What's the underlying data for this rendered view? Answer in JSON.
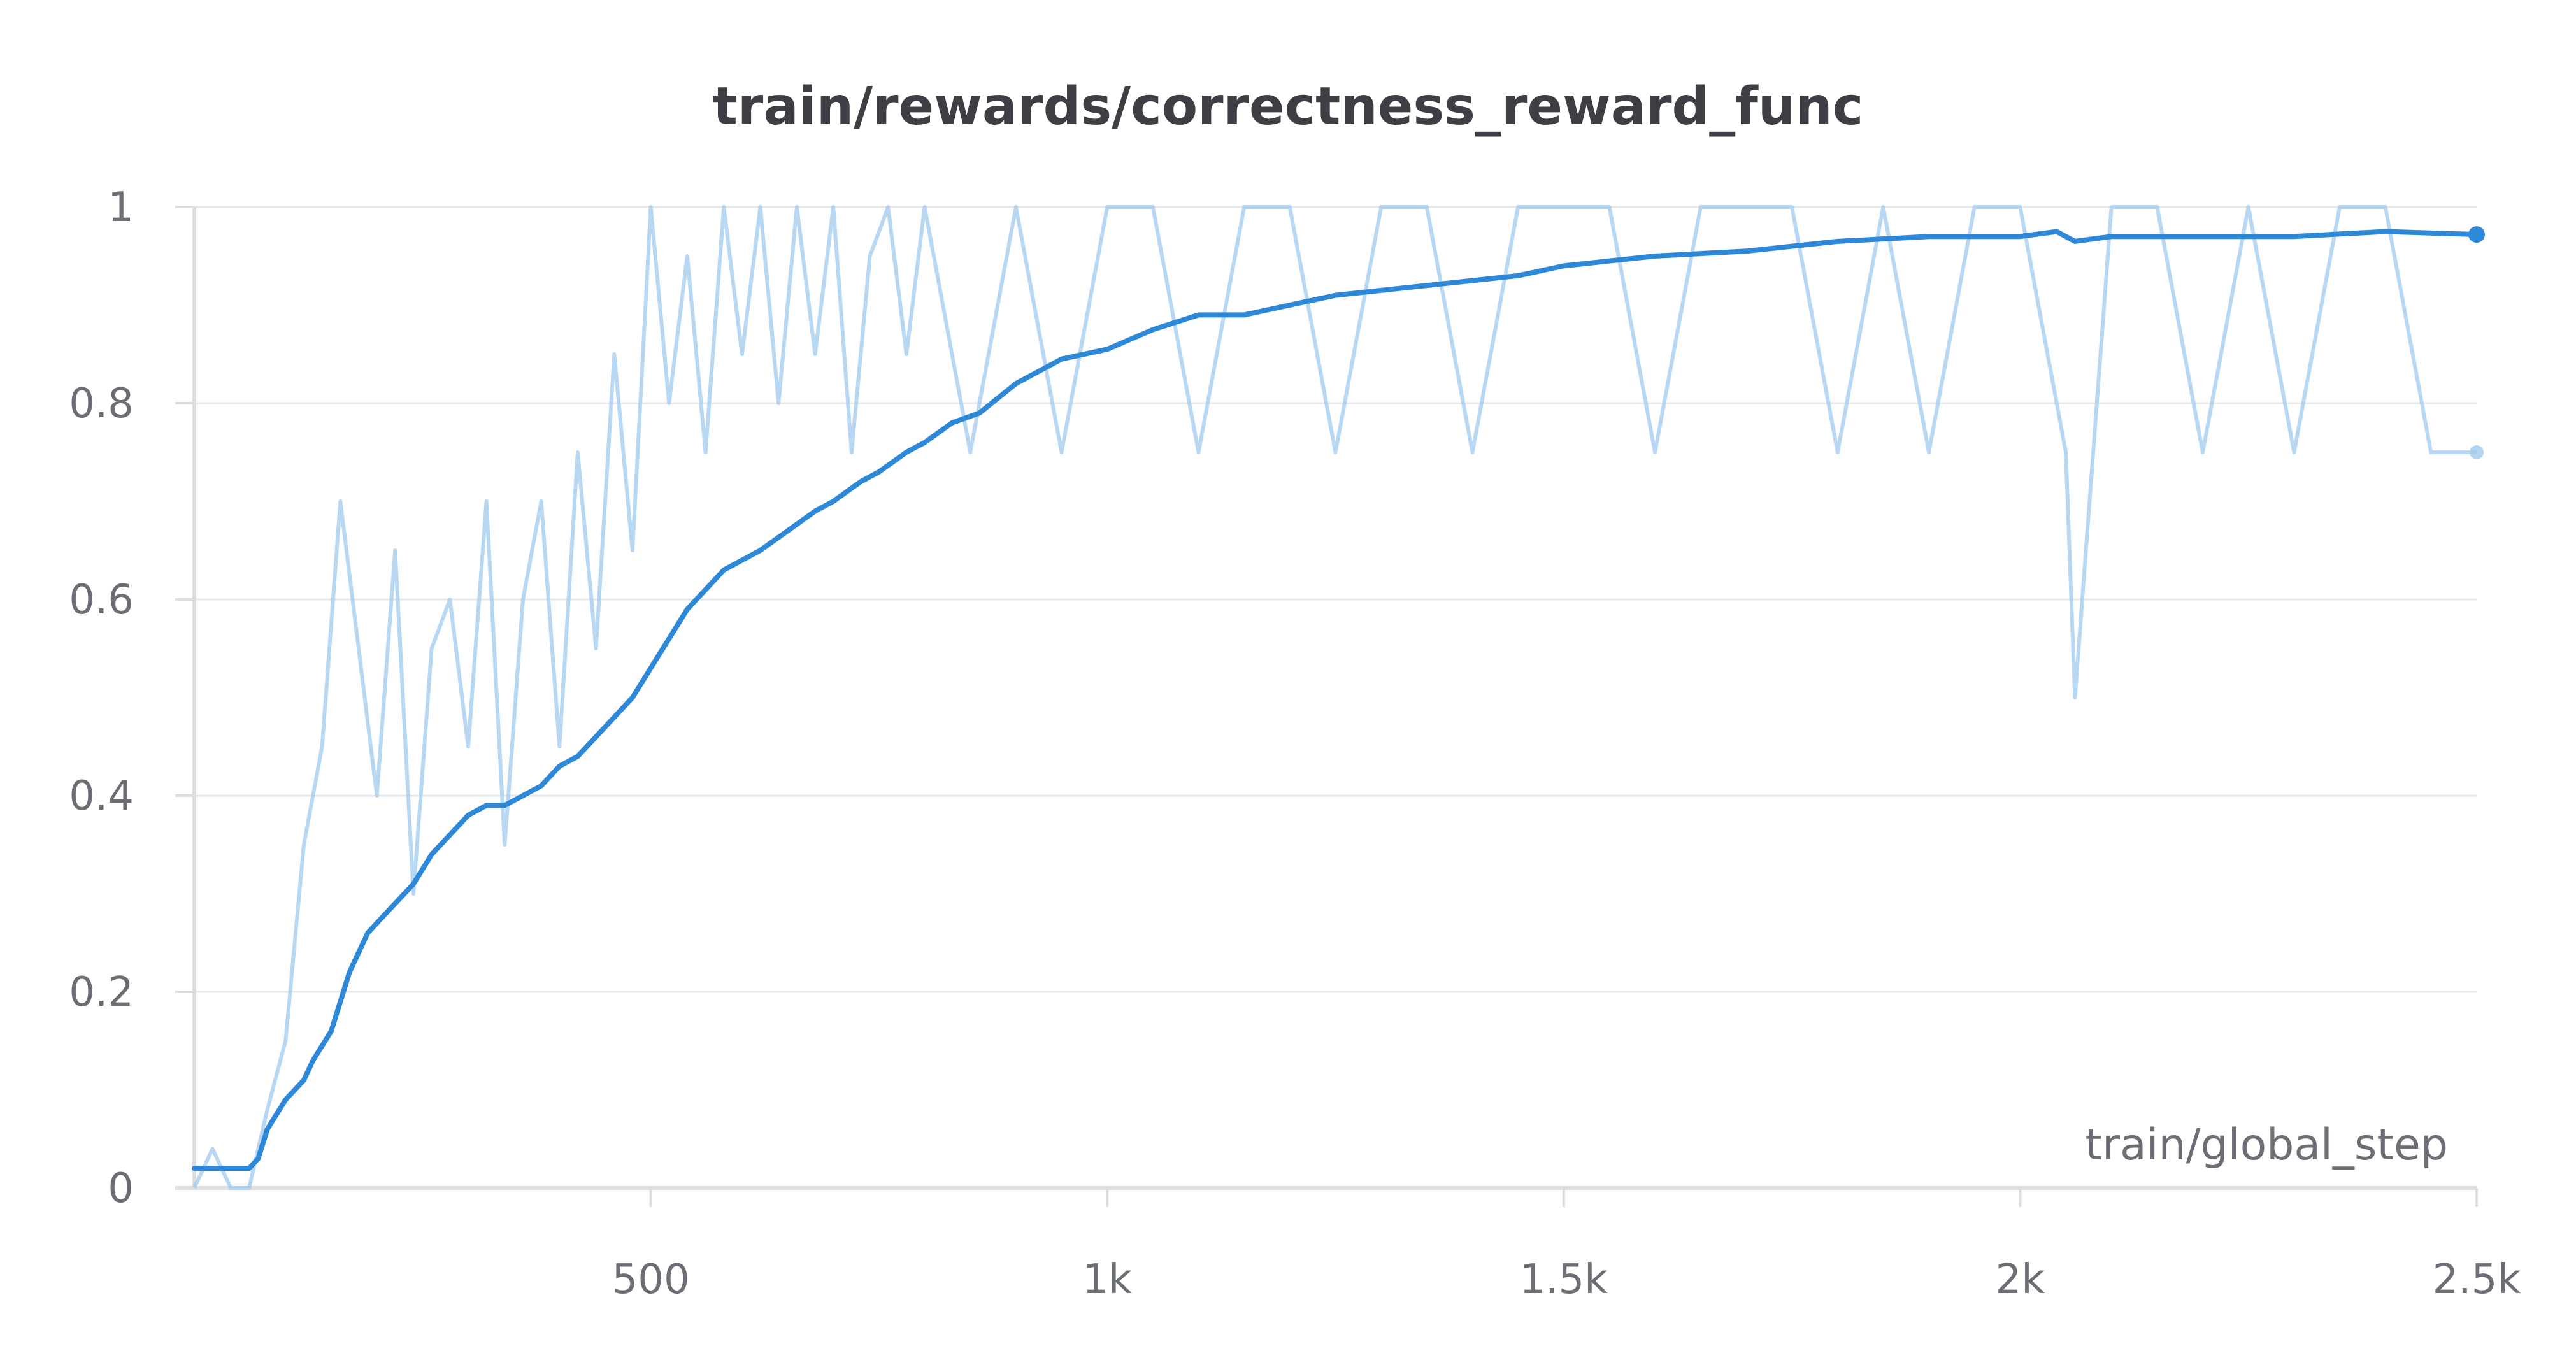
{
  "chart_data": {
    "type": "line",
    "title": "train/rewards/correctness_reward_func",
    "xlabel": "train/global_step",
    "ylabel": "",
    "xlim": [
      0,
      2500
    ],
    "ylim": [
      0,
      1
    ],
    "x_ticks": [
      {
        "value": 500,
        "label": "500"
      },
      {
        "value": 1000,
        "label": "1k"
      },
      {
        "value": 1500,
        "label": "1.5k"
      },
      {
        "value": 2000,
        "label": "2k"
      },
      {
        "value": 2500,
        "label": "2.5k"
      }
    ],
    "y_ticks": [
      {
        "value": 0,
        "label": "0"
      },
      {
        "value": 0.2,
        "label": "0.2"
      },
      {
        "value": 0.4,
        "label": "0.4"
      },
      {
        "value": 0.6,
        "label": "0.6"
      },
      {
        "value": 0.8,
        "label": "0.8"
      },
      {
        "value": 1,
        "label": "1"
      }
    ],
    "grid": true,
    "colors": {
      "smoothed": "#2e88d8",
      "raw": "#9fcaee",
      "grid": "#e6e7ea",
      "axis": "#dcdde0",
      "text": "#6c6e76",
      "title": "#3d3f45"
    },
    "series": [
      {
        "role": "smoothed",
        "x": [
          0,
          10,
          30,
          50,
          60,
          70,
          80,
          100,
          120,
          130,
          150,
          170,
          190,
          200,
          220,
          240,
          260,
          280,
          300,
          320,
          340,
          360,
          380,
          400,
          420,
          440,
          460,
          480,
          500,
          520,
          540,
          560,
          580,
          600,
          620,
          650,
          680,
          700,
          730,
          750,
          780,
          800,
          830,
          860,
          900,
          950,
          1000,
          1050,
          1100,
          1150,
          1200,
          1250,
          1300,
          1350,
          1400,
          1450,
          1500,
          1600,
          1700,
          1800,
          1900,
          2000,
          2040,
          2060,
          2100,
          2150,
          2200,
          2300,
          2400,
          2500
        ],
        "y": [
          0.02,
          0.02,
          0.02,
          0.02,
          0.02,
          0.03,
          0.06,
          0.09,
          0.11,
          0.13,
          0.16,
          0.22,
          0.26,
          0.27,
          0.29,
          0.31,
          0.34,
          0.36,
          0.38,
          0.39,
          0.39,
          0.4,
          0.41,
          0.43,
          0.44,
          0.46,
          0.48,
          0.5,
          0.53,
          0.56,
          0.59,
          0.61,
          0.63,
          0.64,
          0.65,
          0.67,
          0.69,
          0.7,
          0.72,
          0.73,
          0.75,
          0.76,
          0.78,
          0.79,
          0.82,
          0.845,
          0.855,
          0.875,
          0.89,
          0.89,
          0.9,
          0.91,
          0.915,
          0.92,
          0.925,
          0.93,
          0.94,
          0.95,
          0.955,
          0.965,
          0.97,
          0.97,
          0.975,
          0.965,
          0.97,
          0.97,
          0.97,
          0.97,
          0.975,
          0.972
        ]
      },
      {
        "role": "raw",
        "x": [
          0,
          20,
          40,
          60,
          80,
          100,
          120,
          140,
          160,
          180,
          200,
          220,
          240,
          260,
          280,
          300,
          320,
          340,
          360,
          380,
          400,
          420,
          440,
          460,
          480,
          500,
          520,
          540,
          560,
          580,
          600,
          620,
          640,
          660,
          680,
          700,
          720,
          740,
          760,
          780,
          800,
          850,
          900,
          950,
          1000,
          1050,
          1100,
          1150,
          1200,
          1250,
          1300,
          1350,
          1400,
          1450,
          1500,
          1550,
          1600,
          1650,
          1700,
          1750,
          1800,
          1850,
          1900,
          1950,
          2000,
          2050,
          2060,
          2100,
          2150,
          2200,
          2250,
          2300,
          2350,
          2400,
          2450,
          2500
        ],
        "y": [
          0.0,
          0.04,
          0.0,
          0.0,
          0.08,
          0.15,
          0.35,
          0.45,
          0.7,
          0.55,
          0.4,
          0.65,
          0.3,
          0.55,
          0.6,
          0.45,
          0.7,
          0.35,
          0.6,
          0.7,
          0.45,
          0.75,
          0.55,
          0.85,
          0.65,
          1.0,
          0.8,
          0.95,
          0.75,
          1.0,
          0.85,
          1.0,
          0.8,
          1.0,
          0.85,
          1.0,
          0.75,
          0.95,
          1.0,
          0.85,
          1.0,
          0.75,
          1.0,
          0.75,
          1.0,
          1.0,
          0.75,
          1.0,
          1.0,
          0.75,
          1.0,
          1.0,
          0.75,
          1.0,
          1.0,
          1.0,
          0.75,
          1.0,
          1.0,
          1.0,
          0.75,
          1.0,
          0.75,
          1.0,
          1.0,
          0.75,
          0.5,
          1.0,
          1.0,
          0.75,
          1.0,
          0.75,
          1.0,
          1.0,
          0.75,
          0.75
        ]
      }
    ]
  }
}
